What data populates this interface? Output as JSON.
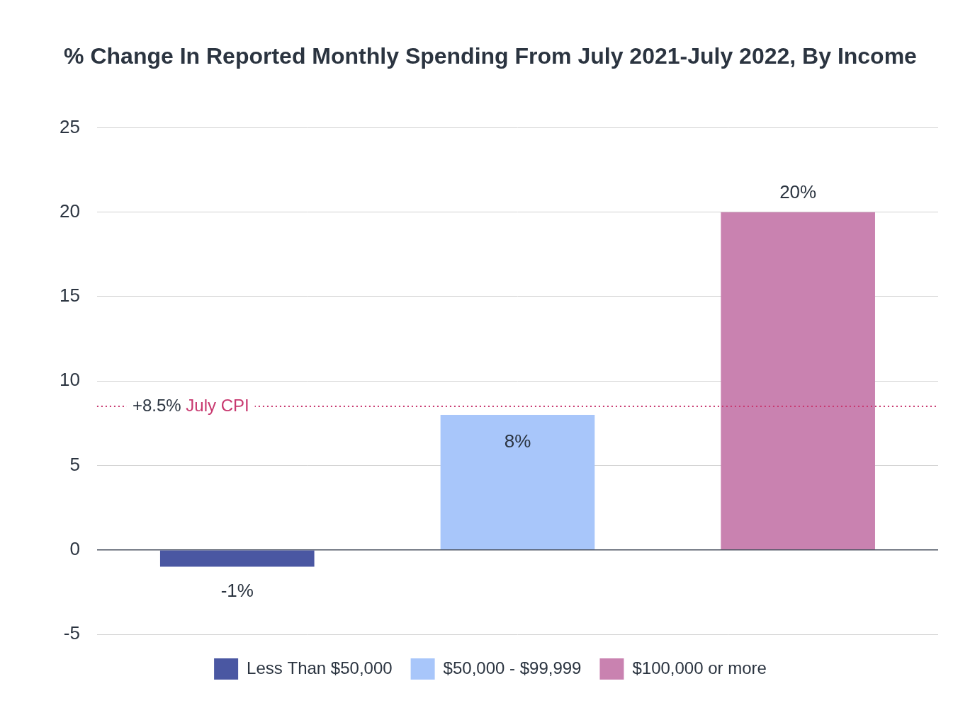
{
  "chart_data": {
    "type": "bar",
    "title": "% Change In Reported Monthly Spending From July 2021-July 2022, By Income",
    "categories": [
      "Less Than $50,000",
      "$50,000 - $99,999",
      "$100,000 or more"
    ],
    "values": [
      -1,
      8,
      20
    ],
    "value_labels": [
      "-1%",
      "8%",
      "20%"
    ],
    "colors": [
      "#4a57a2",
      "#a8c6fa",
      "#c982b0"
    ],
    "ylim": [
      -5,
      25
    ],
    "yticks": [
      -5,
      0,
      5,
      10,
      15,
      20,
      25
    ],
    "grid": true,
    "legend": "bottom",
    "data_labels": true,
    "tick_labels": "y",
    "annotations": [
      {
        "y": 8.5,
        "label": "+8.5%",
        "text": "July CPI",
        "color": "#c8386f",
        "line_style": "dotted"
      }
    ]
  }
}
